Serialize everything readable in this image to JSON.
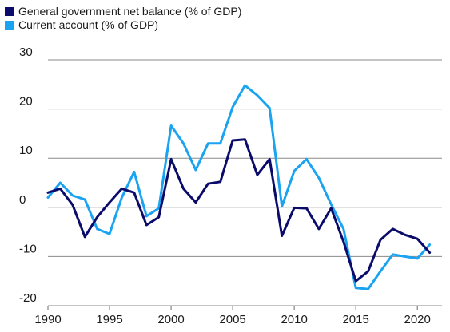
{
  "chart_data": {
    "type": "line",
    "title": "",
    "xlabel": "",
    "ylabel": "",
    "xlim": [
      1990,
      2022
    ],
    "ylim": [
      -20,
      30
    ],
    "x_ticks": [
      1990,
      1995,
      2000,
      2005,
      2010,
      2015,
      2020
    ],
    "x_tick_labels": [
      "1990",
      "1995",
      "2000",
      "2005",
      "2010",
      "2015",
      "2020"
    ],
    "y_ticks": [
      30,
      20,
      10,
      0,
      -10,
      -20
    ],
    "y_tick_labels": [
      "30",
      "20",
      "10",
      "0",
      "-10",
      "-20"
    ],
    "grid": "horizontal",
    "legend_position": "top-left",
    "x": [
      1990,
      1991,
      1992,
      1993,
      1994,
      1995,
      1996,
      1997,
      1998,
      1999,
      2000,
      2001,
      2002,
      2003,
      2004,
      2005,
      2006,
      2007,
      2008,
      2009,
      2010,
      2011,
      2012,
      2013,
      2014,
      2015,
      2016,
      2017,
      2018,
      2019,
      2020,
      2021
    ],
    "series": [
      {
        "name": "General government net balance (% of GDP)",
        "color": "#0b0b6b",
        "values": [
          3.0,
          3.8,
          0.5,
          -6.0,
          -2.0,
          1.0,
          3.8,
          3.0,
          -3.6,
          -2.0,
          9.8,
          3.8,
          1.0,
          4.8,
          5.2,
          13.6,
          13.8,
          6.6,
          9.8,
          -5.8,
          -0.1,
          -0.2,
          -4.4,
          -0.2,
          -7.0,
          -15.0,
          -13.0,
          -6.6,
          -4.4,
          -5.6,
          -6.4,
          -9.2
        ]
      },
      {
        "name": "Current account (% of GDP)",
        "color": "#1aa3f0",
        "values": [
          2.0,
          5.0,
          2.4,
          1.6,
          -4.4,
          -5.4,
          2.0,
          7.2,
          -1.8,
          -0.2,
          16.6,
          13.0,
          7.6,
          13.0,
          13.0,
          20.4,
          24.8,
          22.8,
          20.2,
          0.2,
          7.4,
          9.8,
          6.0,
          0.6,
          -4.4,
          -16.4,
          -16.6,
          -13.0,
          -9.6,
          -10.0,
          -10.4,
          -7.6
        ]
      }
    ]
  }
}
